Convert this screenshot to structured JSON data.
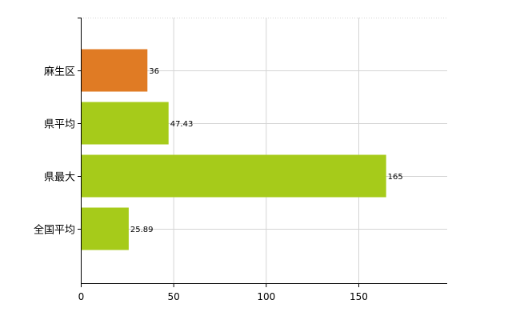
{
  "chart_data": {
    "type": "bar",
    "orientation": "horizontal",
    "categories": [
      "麻生区",
      "県平均",
      "県最大",
      "全国平均"
    ],
    "values": [
      36,
      47.43,
      165,
      25.89
    ],
    "value_labels": [
      "36",
      "47.43",
      "165",
      "25.89"
    ],
    "bar_colors": [
      "#e07b24",
      "#a6cb1a",
      "#a6cb1a",
      "#a6cb1a"
    ],
    "xlim": [
      0,
      198
    ],
    "x_ticks": [
      0,
      50,
      100,
      150
    ],
    "x_tick_labels": [
      "0",
      "50",
      "100",
      "150"
    ],
    "grid": true,
    "legend": "none"
  }
}
